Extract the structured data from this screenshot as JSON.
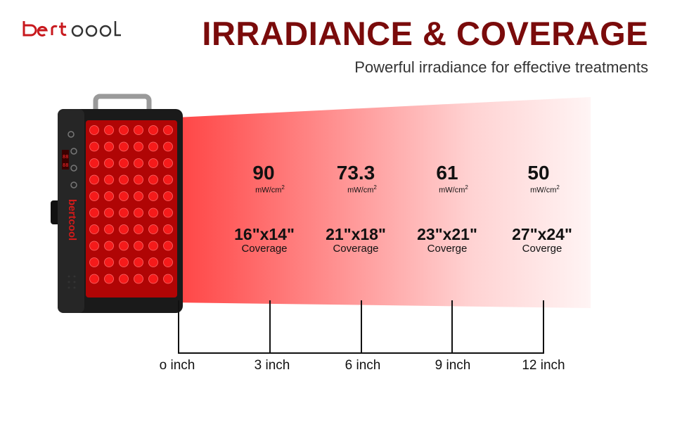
{
  "brand": {
    "logo_text": "bertcool"
  },
  "header": {
    "title": "IRRADIANCE & COVERAGE",
    "subtitle": "Powerful irradiance for effective treatments"
  },
  "colors": {
    "title": "#7a0b0b",
    "beam": "#ff2b2b",
    "led": "#e01010",
    "device": "#1c1c1c"
  },
  "measurements": [
    {
      "value": "90",
      "unit": "mW/cm",
      "unit_exp": "2",
      "coverage": "16\"x14\"",
      "coverage_label": "Coverage"
    },
    {
      "value": "73.3",
      "unit": "mW/cm",
      "unit_exp": "2",
      "coverage": "21\"x18\"",
      "coverage_label": "Coverage"
    },
    {
      "value": "61",
      "unit": "mW/cm",
      "unit_exp": "2",
      "coverage": "23\"x21\"",
      "coverage_label": "Coverge"
    },
    {
      "value": "50",
      "unit": "mW/cm",
      "unit_exp": "2",
      "coverage": "27\"x24\"",
      "coverage_label": "Coverge"
    }
  ],
  "distances": [
    "o inch",
    "3 inch",
    "6 inch",
    "9 inch",
    "12 inch"
  ]
}
